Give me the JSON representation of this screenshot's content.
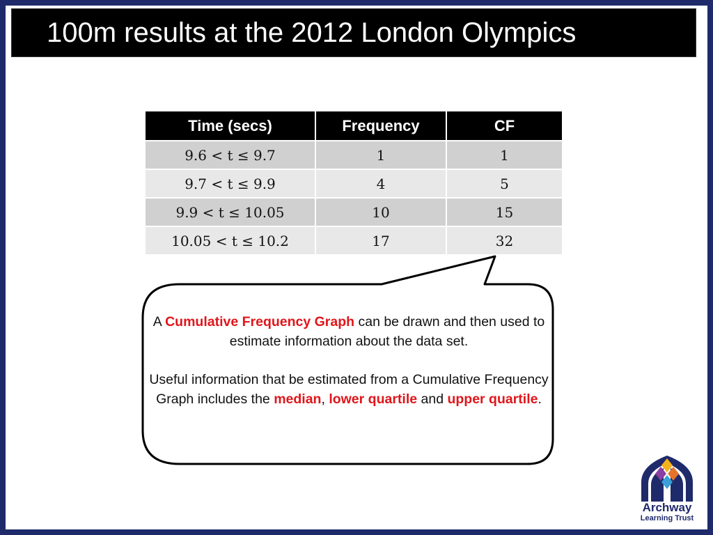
{
  "slide": {
    "title": "100m results at the 2012 London Olympics"
  },
  "table": {
    "headers": [
      "Time (secs)",
      "Frequency",
      "CF"
    ],
    "rows": [
      {
        "time": "9.6  <  t  ≤  9.7",
        "frequency": "1",
        "cf": "1"
      },
      {
        "time": "9.7  <  t  ≤  9.9",
        "frequency": "4",
        "cf": "5"
      },
      {
        "time": "9.9  <  t  ≤  10.05",
        "frequency": "10",
        "cf": "15"
      },
      {
        "time": "10.05  <  t  ≤  10.2",
        "frequency": "17",
        "cf": "32"
      }
    ]
  },
  "callout": {
    "p1_a": "A ",
    "p1_term": "Cumulative Frequency Graph",
    "p1_b": " can be drawn and then used to estimate information about the data set.",
    "p2_a": "Useful information that be estimated from a Cumulative Frequency Graph includes the ",
    "p2_median": "median",
    "p2_comma": ", ",
    "p2_lq": "lower quartile",
    "p2_and": " and ",
    "p2_uq": "upper quartile",
    "p2_end": "."
  },
  "logo": {
    "name": "Archway",
    "subtitle": "Learning Trust"
  },
  "colors": {
    "highlight": "#e0161b",
    "frame": "#1f2a6b",
    "row_dark": "#d0d0d0",
    "row_light": "#e8e8e8"
  }
}
